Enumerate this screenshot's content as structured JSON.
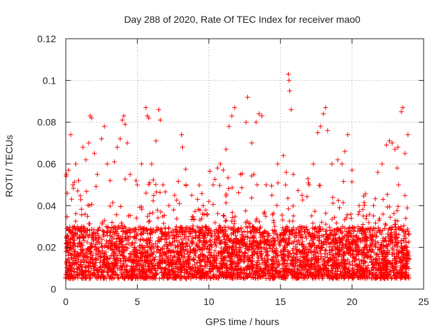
{
  "chart_data": {
    "type": "scatter",
    "title": "Day 288 of 2020, Rate Of TEC Index for receiver mao0",
    "xlabel": "GPS time / hours",
    "ylabel": "ROTI / TECUs",
    "xlim": [
      0,
      25
    ],
    "ylim": [
      0,
      0.12
    ],
    "x_ticks": [
      "0",
      "5",
      "10",
      "15",
      "20",
      "25"
    ],
    "y_ticks": [
      "0",
      "0.02",
      "0.04",
      "0.06",
      "0.08",
      "0.1",
      "0.12"
    ],
    "x_tick_values": [
      0,
      5,
      10,
      15,
      20,
      25
    ],
    "y_tick_values": [
      0,
      0.02,
      0.04,
      0.06,
      0.08,
      0.1,
      0.12
    ],
    "grid": true,
    "legend": "none",
    "marker": "plus",
    "color": "#ff0000",
    "x_range_of_data": [
      0,
      24
    ],
    "summary": {
      "typical_band": [
        0.005,
        0.03
      ],
      "peak_value": 0.103,
      "peak_time_hours": 15.6
    },
    "series": [
      {
        "points": [
          [
            0.05,
            0.055
          ],
          [
            0.1,
            0.046
          ],
          [
            0.2,
            0.057
          ],
          [
            0.35,
            0.074
          ],
          [
            0.5,
            0.05
          ],
          [
            0.7,
            0.06
          ],
          [
            0.9,
            0.052
          ],
          [
            1.2,
            0.068
          ],
          [
            1.4,
            0.062
          ],
          [
            1.6,
            0.07
          ],
          [
            1.7,
            0.083
          ],
          [
            1.8,
            0.082
          ],
          [
            2.0,
            0.065
          ],
          [
            2.2,
            0.055
          ],
          [
            2.5,
            0.072
          ],
          [
            2.7,
            0.078
          ],
          [
            2.9,
            0.06
          ],
          [
            3.1,
            0.052
          ],
          [
            3.4,
            0.061
          ],
          [
            3.6,
            0.068
          ],
          [
            3.8,
            0.072
          ],
          [
            3.95,
            0.081
          ],
          [
            4.05,
            0.083
          ],
          [
            4.15,
            0.079
          ],
          [
            4.3,
            0.07
          ],
          [
            4.5,
            0.055
          ],
          [
            5.0,
            0.05
          ],
          [
            5.3,
            0.06
          ],
          [
            5.6,
            0.087
          ],
          [
            5.7,
            0.083
          ],
          [
            5.8,
            0.082
          ],
          [
            6.0,
            0.06
          ],
          [
            6.3,
            0.071
          ],
          [
            6.5,
            0.086
          ],
          [
            6.6,
            0.081
          ],
          [
            6.8,
            0.05
          ],
          [
            7.2,
            0.04
          ],
          [
            7.6,
            0.045
          ],
          [
            8.1,
            0.074
          ],
          [
            8.15,
            0.068
          ],
          [
            8.4,
            0.05
          ],
          [
            8.8,
            0.045
          ],
          [
            9.2,
            0.043
          ],
          [
            9.6,
            0.04
          ],
          [
            10.0,
            0.042
          ],
          [
            10.3,
            0.05
          ],
          [
            10.6,
            0.058
          ],
          [
            10.8,
            0.06
          ],
          [
            11.0,
            0.057
          ],
          [
            11.2,
            0.067
          ],
          [
            11.4,
            0.078
          ],
          [
            11.6,
            0.083
          ],
          [
            11.8,
            0.087
          ],
          [
            12.2,
            0.055
          ],
          [
            12.6,
            0.08
          ],
          [
            12.7,
            0.092
          ],
          [
            13.0,
            0.07
          ],
          [
            13.3,
            0.08
          ],
          [
            13.5,
            0.084
          ],
          [
            13.7,
            0.083
          ],
          [
            14.0,
            0.05
          ],
          [
            14.4,
            0.045
          ],
          [
            14.8,
            0.06
          ],
          [
            15.2,
            0.064
          ],
          [
            15.4,
            0.056
          ],
          [
            15.55,
            0.103
          ],
          [
            15.6,
            0.1
          ],
          [
            15.65,
            0.095
          ],
          [
            15.75,
            0.086
          ],
          [
            15.9,
            0.055
          ],
          [
            16.5,
            0.045
          ],
          [
            17.0,
            0.05
          ],
          [
            17.3,
            0.06
          ],
          [
            17.6,
            0.075
          ],
          [
            17.8,
            0.078
          ],
          [
            18.0,
            0.084
          ],
          [
            18.15,
            0.087
          ],
          [
            18.3,
            0.076
          ],
          [
            18.6,
            0.06
          ],
          [
            19.0,
            0.062
          ],
          [
            19.3,
            0.06
          ],
          [
            19.5,
            0.066
          ],
          [
            19.7,
            0.074
          ],
          [
            20.0,
            0.057
          ],
          [
            20.5,
            0.04
          ],
          [
            21.0,
            0.035
          ],
          [
            21.5,
            0.04
          ],
          [
            21.8,
            0.056
          ],
          [
            22.1,
            0.06
          ],
          [
            22.4,
            0.069
          ],
          [
            22.6,
            0.071
          ],
          [
            22.8,
            0.07
          ],
          [
            23.0,
            0.067
          ],
          [
            23.2,
            0.068
          ],
          [
            23.45,
            0.085
          ],
          [
            23.55,
            0.087
          ],
          [
            23.7,
            0.065
          ],
          [
            23.9,
            0.074
          ]
        ]
      }
    ]
  }
}
